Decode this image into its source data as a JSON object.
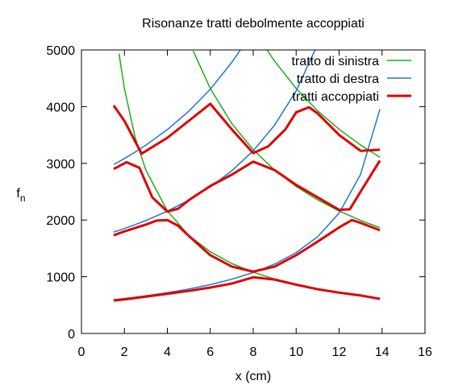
{
  "chart_data": {
    "type": "line",
    "title": "Risonanze tratti debolmente accoppiati",
    "xlabel": "x (cm)",
    "ylabel": "f",
    "ylabel_subscript": "n",
    "xlim": [
      0,
      16
    ],
    "ylim": [
      0,
      5000
    ],
    "xticks": [
      0,
      2,
      4,
      6,
      8,
      10,
      12,
      14,
      16
    ],
    "yticks": [
      0,
      1000,
      2000,
      3000,
      4000,
      5000
    ],
    "legend": "top right",
    "series": [
      {
        "name": "tratto di sinistra",
        "color": "#1aae1a",
        "width": 1.5,
        "curves": [
          {
            "x": [
              1.5,
              1.75,
              2,
              2.5,
              3,
              4,
              5,
              6,
              7,
              8,
              9,
              10,
              11,
              12,
              13,
              13.9
            ],
            "values": [
              null,
              4937,
              4320,
              3456,
              2880,
              2160,
              1728,
              1440,
              1234,
              1080,
              960,
              864,
              785,
              720,
              665,
              622
            ]
          },
          {
            "x": [
              5.2,
              6,
              7,
              8,
              9,
              10,
              11,
              12,
              13,
              13.9
            ],
            "values": [
              4985,
              4320,
              3703,
              3240,
              2880,
              2592,
              2356,
              2160,
              1994,
              1865
            ]
          },
          {
            "x": [
              8.64,
              9,
              10,
              11,
              12,
              13,
              13.9
            ],
            "values": [
              5000,
              4800,
              4320,
              3927,
              3600,
              3323,
              3108
            ]
          }
        ]
      },
      {
        "name": "tratto di destra",
        "color": "#1a78d2",
        "width": 1.5,
        "curves": [
          {
            "x": [
              1.5,
              1.75,
              2,
              2.5,
              3,
              4,
              5,
              6,
              7,
              8,
              9,
              10,
              11,
              12,
              13,
              13.9
            ],
            "values": [
              596,
              606,
              617,
              640,
              664,
              719,
              784,
              861,
              956,
              1074,
              1225,
              1426,
              1706,
              2122,
              2806,
              3955
            ]
          },
          {
            "x": [
              1.5,
              1.75,
              2,
              2.5,
              3,
              4,
              5,
              6,
              7,
              8,
              9,
              10,
              10.88
            ],
            "values": [
              1788,
              1819,
              1851,
              1919,
              1992,
              2157,
              2351,
              2584,
              2868,
              3222,
              3676,
              4279,
              5000
            ]
          },
          {
            "x": [
              1.5,
              1.75,
              2,
              2.5,
              3,
              4,
              5,
              6,
              7,
              7.4
            ],
            "values": [
              2979,
              3031,
              3085,
              3199,
              3321,
              3595,
              3919,
              4307,
              4780,
              5000
            ]
          }
        ]
      },
      {
        "name": "tratti accoppiati",
        "color": "#e00000",
        "width": 3,
        "curves": [
          {
            "x": [
              1.5,
              2,
              3,
              4,
              5,
              6,
              7,
              8,
              9,
              10,
              11,
              12,
              13,
              13.9
            ],
            "values": [
              580,
              600,
              650,
              700,
              750,
              810,
              880,
              990,
              950,
              860,
              780,
              720,
              670,
              610
            ]
          },
          {
            "x": [
              1.5,
              2,
              3,
              3.5,
              4,
              4.5,
              5,
              6,
              7,
              8,
              9,
              10,
              11,
              12,
              12.6,
              13,
              13.9
            ],
            "values": [
              1730,
              1800,
              1920,
              1990,
              2000,
              1900,
              1720,
              1380,
              1180,
              1090,
              1180,
              1380,
              1620,
              1870,
              2000,
              1950,
              1820
            ]
          },
          {
            "x": [
              1.5,
              2.1,
              2.7,
              3.3,
              4,
              4.5,
              5,
              6,
              7,
              8,
              9,
              10,
              11,
              12,
              12.5,
              13,
              13.9
            ],
            "values": [
              2900,
              3020,
              2920,
              2400,
              2150,
              2200,
              2350,
              2600,
              2800,
              3030,
              2880,
              2620,
              2400,
              2180,
              2190,
              2500,
              3050
            ]
          },
          {
            "x": [
              1.5,
              2,
              2.8,
              4,
              5,
              6,
              7,
              8,
              8.7,
              9.5,
              10,
              10.6,
              11,
              12,
              13,
              13.9
            ],
            "values": [
              4020,
              3750,
              3170,
              3450,
              3750,
              4050,
              3600,
              3180,
              3300,
              3600,
              3900,
              3990,
              3880,
              3500,
              3220,
              3240
            ]
          }
        ]
      }
    ]
  }
}
